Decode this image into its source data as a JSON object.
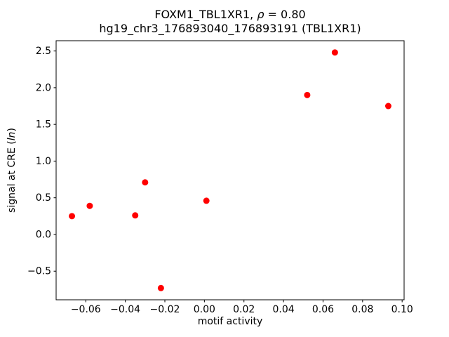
{
  "figure": {
    "title": {
      "pre_rho": "FOXM1_TBL1XR1, ",
      "rho": "ρ",
      "post_rho": " = 0.80",
      "line2": "hg19_chr3_176893040_176893191 (TBL1XR1)"
    },
    "xlabel": "motif activity",
    "ylabel": {
      "pre": "signal at CRE (",
      "italic": "ln",
      "post": ")"
    }
  },
  "chart_data": {
    "type": "scatter",
    "title": "FOXM1_TBL1XR1, ρ = 0.80",
    "subtitle": "hg19_chr3_176893040_176893191 (TBL1XR1)",
    "xlabel": "motif activity",
    "ylabel": "signal at CRE (ln)",
    "marker": {
      "shape": "circle",
      "color": "#ff0000",
      "radius_px": 4.5
    },
    "points": [
      [
        -0.067,
        0.25
      ],
      [
        -0.058,
        0.39
      ],
      [
        -0.035,
        0.26
      ],
      [
        -0.03,
        0.71
      ],
      [
        -0.022,
        -0.73
      ],
      [
        0.001,
        0.46
      ],
      [
        0.052,
        1.9
      ],
      [
        0.066,
        2.48
      ],
      [
        0.093,
        1.75
      ]
    ],
    "xlim": [
      -0.075,
      0.101
    ],
    "ylim": [
      -0.89,
      2.64
    ],
    "xticks": [
      -0.06,
      -0.04,
      -0.02,
      0.0,
      0.02,
      0.04,
      0.06,
      0.08,
      0.1
    ],
    "xtick_labels": [
      "−0.06",
      "−0.04",
      "−0.02",
      "0.00",
      "0.02",
      "0.04",
      "0.06",
      "0.08",
      "0.10"
    ],
    "yticks": [
      -0.5,
      0.0,
      0.5,
      1.0,
      1.5,
      2.0,
      2.5
    ],
    "ytick_labels": [
      "−0.5",
      "0.0",
      "0.5",
      "1.0",
      "1.5",
      "2.0",
      "2.5"
    ],
    "grid": false,
    "legend": null,
    "axes_box": true
  }
}
